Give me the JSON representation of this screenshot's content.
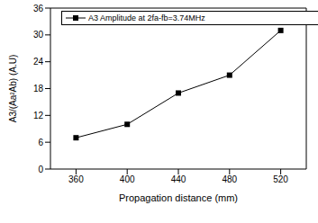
{
  "chart_data": {
    "type": "line",
    "x_label": "Propagation distance (mm)",
    "y_label": "A3/(Aa²Ab) (A.U)",
    "x": [
      360,
      400,
      440,
      480,
      520
    ],
    "series": [
      {
        "name": "A3 Amplitude at 2fa-fb=3.74MHz",
        "color": "#000000",
        "values": [
          7,
          10,
          17,
          21,
          31
        ],
        "marker": "square",
        "line_style": "solid"
      }
    ],
    "xlim": [
      340,
      540
    ],
    "xticks": [
      360,
      400,
      440,
      480,
      520
    ],
    "ylim": [
      0,
      36
    ],
    "yticks": [
      0,
      6,
      12,
      18,
      24,
      30,
      36
    ],
    "grid": false,
    "legend": "upper left"
  }
}
